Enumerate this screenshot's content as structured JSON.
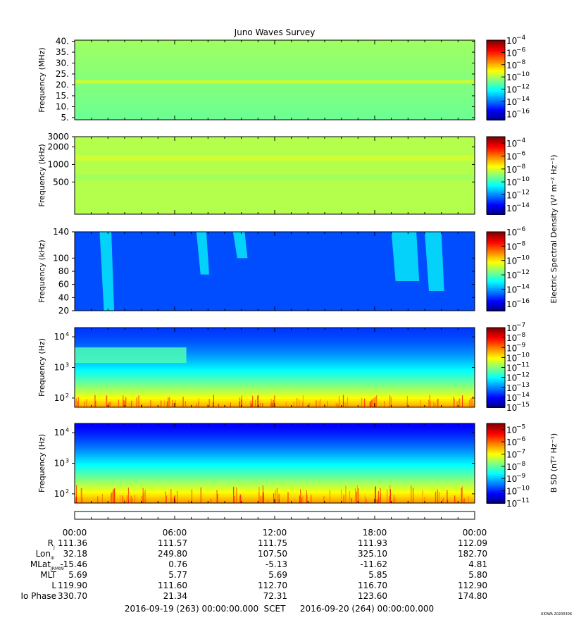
{
  "title": "Juno Waves Survey",
  "chart_data": [
    {
      "type": "heatmap",
      "ylabel": "Frequency (MHz)",
      "y_scale": "linear",
      "ylim": [
        4,
        40.5
      ],
      "yticks": [
        {
          "v": 5,
          "label": "5."
        },
        {
          "v": 10,
          "label": "10."
        },
        {
          "v": 15,
          "label": "15."
        },
        {
          "v": 20,
          "label": "20."
        },
        {
          "v": 25,
          "label": "25."
        },
        {
          "v": 30,
          "label": "30."
        },
        {
          "v": 35,
          "label": "35."
        },
        {
          "v": 40,
          "label": "40."
        }
      ],
      "color_scale": {
        "min_exp": -17,
        "max_exp": -4,
        "ticks": [
          -4,
          -6,
          -8,
          -10,
          -12,
          -14,
          -16
        ]
      },
      "features": [
        {
          "kind": "band",
          "y": 21.5,
          "width": 1.2,
          "level": 0.48
        }
      ],
      "background_level": 0.53
    },
    {
      "type": "heatmap",
      "ylabel": "Frequency (kHz)",
      "y_scale": "log",
      "ylim": [
        140,
        3000
      ],
      "yticks": [
        {
          "v": 500,
          "label": "500"
        },
        {
          "v": 1000,
          "label": "1000"
        },
        {
          "v": 2000,
          "label": "2000"
        },
        {
          "v": 3000,
          "label": "3000"
        }
      ],
      "color_scale": {
        "min_exp": -15,
        "max_exp": -3,
        "ticks": [
          -4,
          -6,
          -8,
          -10,
          -12,
          -14
        ]
      },
      "features": [
        {
          "kind": "band",
          "y": 600,
          "width": 0.08,
          "level": 0.43
        },
        {
          "kind": "band",
          "y": 1300,
          "width": 0.05,
          "level": 0.48
        }
      ],
      "background_level": 0.55
    },
    {
      "type": "heatmap",
      "ylabel": "Frequency (kHz)",
      "y_scale": "linear",
      "ylim": [
        20,
        140
      ],
      "yticks": [
        {
          "v": 20,
          "label": "20"
        },
        {
          "v": 40,
          "label": "40"
        },
        {
          "v": 60,
          "label": "60"
        },
        {
          "v": 80,
          "label": "80"
        },
        {
          "v": 100,
          "label": "100"
        },
        {
          "v": 140,
          "label": "140"
        }
      ],
      "color_scale": {
        "min_exp": -17,
        "max_exp": -6,
        "ticks": [
          -6,
          -8,
          -10,
          -12,
          -14,
          -16
        ]
      },
      "features": [
        {
          "kind": "burst",
          "x0": 1.5,
          "x1": 2.2,
          "f_top": 140,
          "f_bot": 20
        },
        {
          "kind": "burst",
          "x0": 7.3,
          "x1": 7.9,
          "f_top": 140,
          "f_bot": 75
        },
        {
          "kind": "burst",
          "x0": 9.5,
          "x1": 10.2,
          "f_top": 140,
          "f_bot": 100
        },
        {
          "kind": "burst",
          "x0": 19.0,
          "x1": 20.5,
          "f_top": 140,
          "f_bot": 65
        },
        {
          "kind": "burst",
          "x0": 21.0,
          "x1": 22.0,
          "f_top": 140,
          "f_bot": 50
        }
      ],
      "background_level": 0.2
    },
    {
      "type": "heatmap",
      "ylabel": "Frequency (Hz)",
      "y_scale": "log",
      "ylim": [
        50,
        20000
      ],
      "yticks": [
        {
          "v": 100,
          "label": "10",
          "exp": "2"
        },
        {
          "v": 1000,
          "label": "10",
          "exp": "3"
        },
        {
          "v": 10000,
          "label": "10",
          "exp": "4"
        }
      ],
      "color_scale": {
        "min_exp": -15,
        "max_exp": -7,
        "ticks": [
          -7,
          -8,
          -9,
          -10,
          -11,
          -12,
          -13,
          -14,
          -15
        ]
      },
      "features": [
        {
          "kind": "emission",
          "x0": 0,
          "x1": 6.7,
          "f_lo": 1400,
          "f_hi": 4500
        }
      ],
      "background_level": 0.2
    },
    {
      "type": "heatmap",
      "ylabel": "Frequency (Hz)",
      "y_scale": "log",
      "ylim": [
        50,
        20000
      ],
      "yticks": [
        {
          "v": 100,
          "label": "10",
          "exp": "2"
        },
        {
          "v": 1000,
          "label": "10",
          "exp": "3"
        },
        {
          "v": 10000,
          "label": "10",
          "exp": "4"
        }
      ],
      "color_scale": {
        "min_exp": -11,
        "max_exp": -4.5,
        "ticks": [
          -5,
          -6,
          -7,
          -8,
          -9,
          -10,
          -11
        ]
      },
      "features": [],
      "background_level": 0.2
    }
  ],
  "colorbar_labels": {
    "electric": "Electric Spectral Density (V",
    "electric_tail": " m",
    "electric_end": " Hz",
    "magnetic": "B SD (nT",
    "magnetic_tail": " Hz"
  },
  "x_axis": {
    "range_hours": [
      0,
      24
    ],
    "ticks": [
      "00:00",
      "06:00",
      "12:00",
      "18:00",
      "00:00"
    ]
  },
  "ephemeris": {
    "rows": [
      {
        "label": "R",
        "sub": "J",
        "values": [
          "111.36",
          "111.57",
          "111.75",
          "111.93",
          "112.09"
        ]
      },
      {
        "label": "Lon",
        "sub": "III",
        "values": [
          "32.18",
          "249.80",
          "107.50",
          "325.10",
          "182.70"
        ]
      },
      {
        "label": "MLat",
        "sub": "JRM09",
        "values": [
          "-15.46",
          "0.76",
          "-5.13",
          "-11.62",
          "4.81"
        ]
      },
      {
        "label": "MLT",
        "sub": "",
        "values": [
          "5.69",
          "5.77",
          "5.69",
          "5.85",
          "5.80"
        ]
      },
      {
        "label": "L",
        "sub": "",
        "values": [
          "119.90",
          "111.60",
          "112.70",
          "116.70",
          "112.90"
        ]
      },
      {
        "label": "Io Phase",
        "sub": "",
        "values": [
          "330.70",
          "21.34",
          "72.31",
          "123.60",
          "174.80"
        ]
      }
    ]
  },
  "footer": {
    "start": "2016-09-19 (263) 00:00:00.000",
    "scet": "SCET",
    "end": "2016-09-20 (264) 00:00:00.000"
  },
  "stamp": "UIOWA 20200306"
}
